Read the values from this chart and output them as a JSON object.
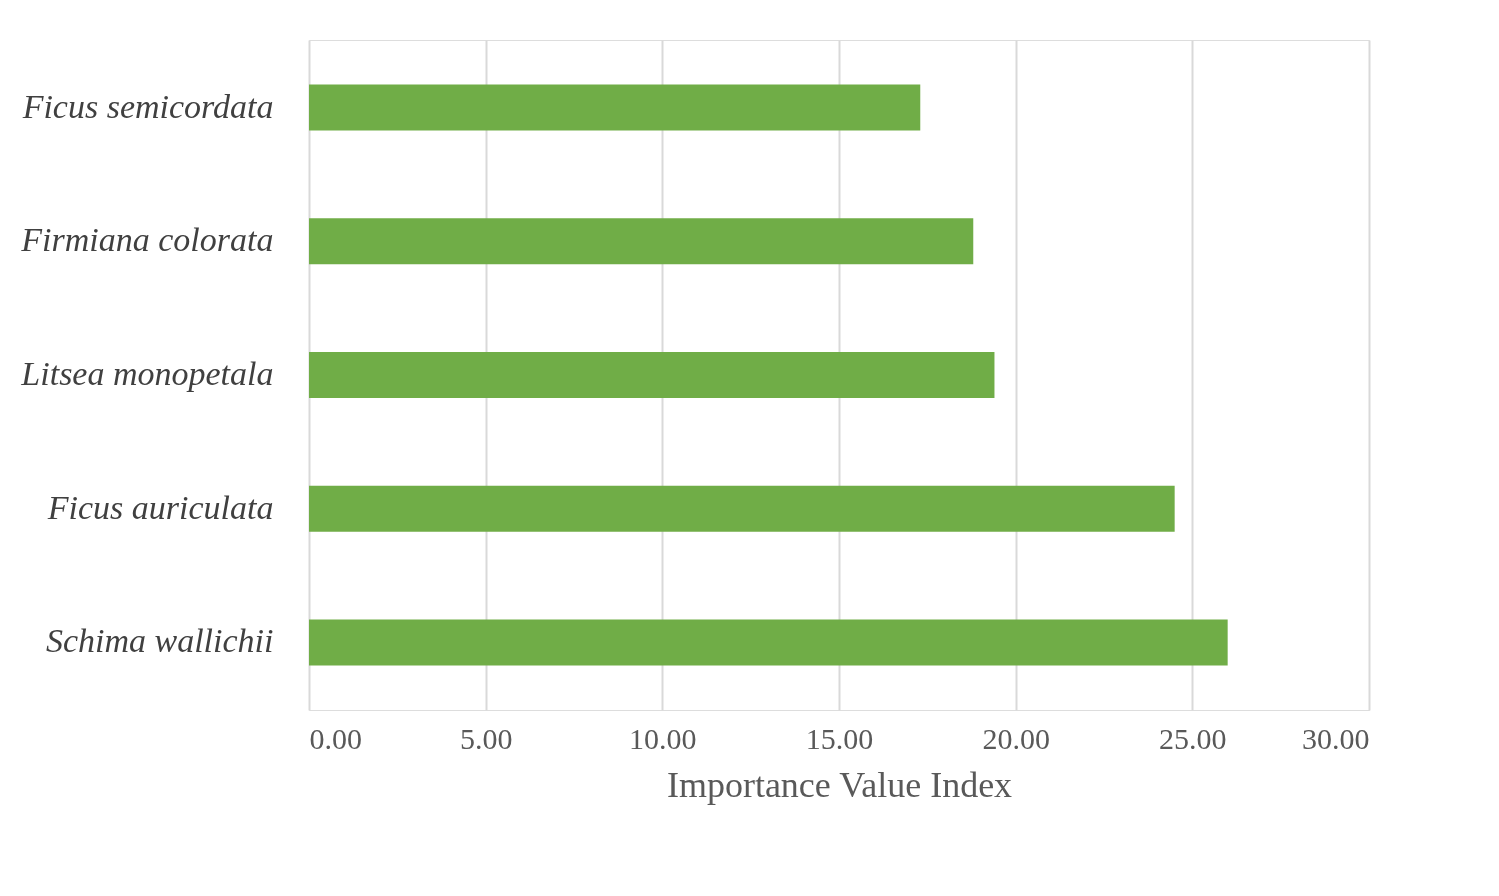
{
  "chart_data": {
    "type": "bar",
    "orientation": "horizontal",
    "xlabel": "Importance Value Index",
    "categories": [
      "Ficus semicordata",
      "Firmiana colorata",
      "Litsea monopetala",
      "Ficus auriculata",
      "Schima wallichii"
    ],
    "values": [
      17.3,
      18.8,
      19.4,
      24.5,
      26.0
    ],
    "color": "#70ad47",
    "xlim": [
      0,
      30
    ],
    "xticks": [
      {
        "value": 0,
        "label": "0.00"
      },
      {
        "value": 5,
        "label": "5.00"
      },
      {
        "value": 10,
        "label": "10.00"
      },
      {
        "value": 15,
        "label": "15.00"
      },
      {
        "value": 20,
        "label": "20.00"
      },
      {
        "value": 25,
        "label": "25.00"
      },
      {
        "value": 30,
        "label": "30.00"
      }
    ],
    "grid": "x"
  }
}
